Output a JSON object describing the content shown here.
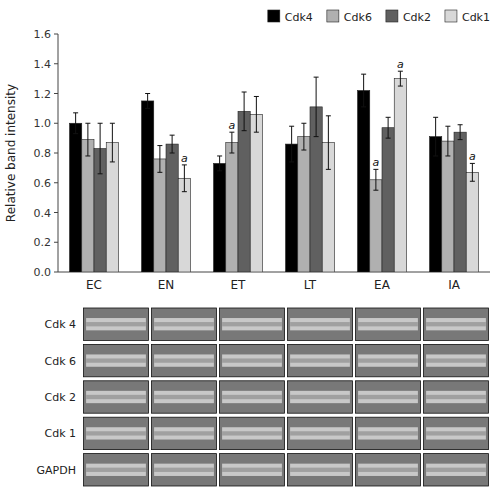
{
  "chart_data": [
    {
      "type": "bar",
      "ylabel": "Relative band intensity",
      "categories": [
        "EC",
        "EN",
        "ET",
        "LT",
        "EA",
        "IA"
      ],
      "series": [
        {
          "name": "Cdk4",
          "color": "#000000",
          "values": [
            1.0,
            1.15,
            0.73,
            0.86,
            1.22,
            0.91
          ],
          "errors": [
            0.07,
            0.05,
            0.05,
            0.12,
            0.11,
            0.13
          ],
          "annotations": [
            null,
            null,
            null,
            null,
            null,
            null
          ]
        },
        {
          "name": "Cdk6",
          "color": "#b0b0b0",
          "values": [
            0.89,
            0.76,
            0.87,
            0.91,
            0.62,
            0.88
          ],
          "errors": [
            0.11,
            0.09,
            0.07,
            0.09,
            0.07,
            0.1
          ],
          "annotations": [
            null,
            null,
            "a",
            null,
            "a",
            null
          ]
        },
        {
          "name": "Cdk2",
          "color": "#606060",
          "values": [
            0.83,
            0.86,
            1.08,
            1.11,
            0.97,
            0.94
          ],
          "errors": [
            0.17,
            0.06,
            0.13,
            0.2,
            0.07,
            0.05
          ],
          "annotations": [
            null,
            null,
            null,
            null,
            null,
            null
          ]
        },
        {
          "name": "Cdk1",
          "color": "#d8d8d8",
          "values": [
            0.87,
            0.63,
            1.06,
            0.87,
            1.3,
            0.67
          ],
          "errors": [
            0.13,
            0.09,
            0.12,
            0.18,
            0.05,
            0.06
          ],
          "annotations": [
            null,
            "a",
            null,
            null,
            "a",
            "a"
          ]
        }
      ],
      "ylim": [
        0.0,
        1.6
      ],
      "yticks": [
        {
          "value": 0.0,
          "label": "0.0"
        },
        0.2,
        0.4,
        0.6,
        0.8,
        {
          "value": 1.0,
          "label": "1.0"
        },
        1.2,
        1.4,
        1.6
      ],
      "legend": "top-right",
      "grid": false
    },
    {
      "type": "blot",
      "categories": [
        "Cdk 4",
        "Cdk 6",
        "Cdk 2",
        "Cdk 1",
        "GAPDH"
      ]
    }
  ]
}
